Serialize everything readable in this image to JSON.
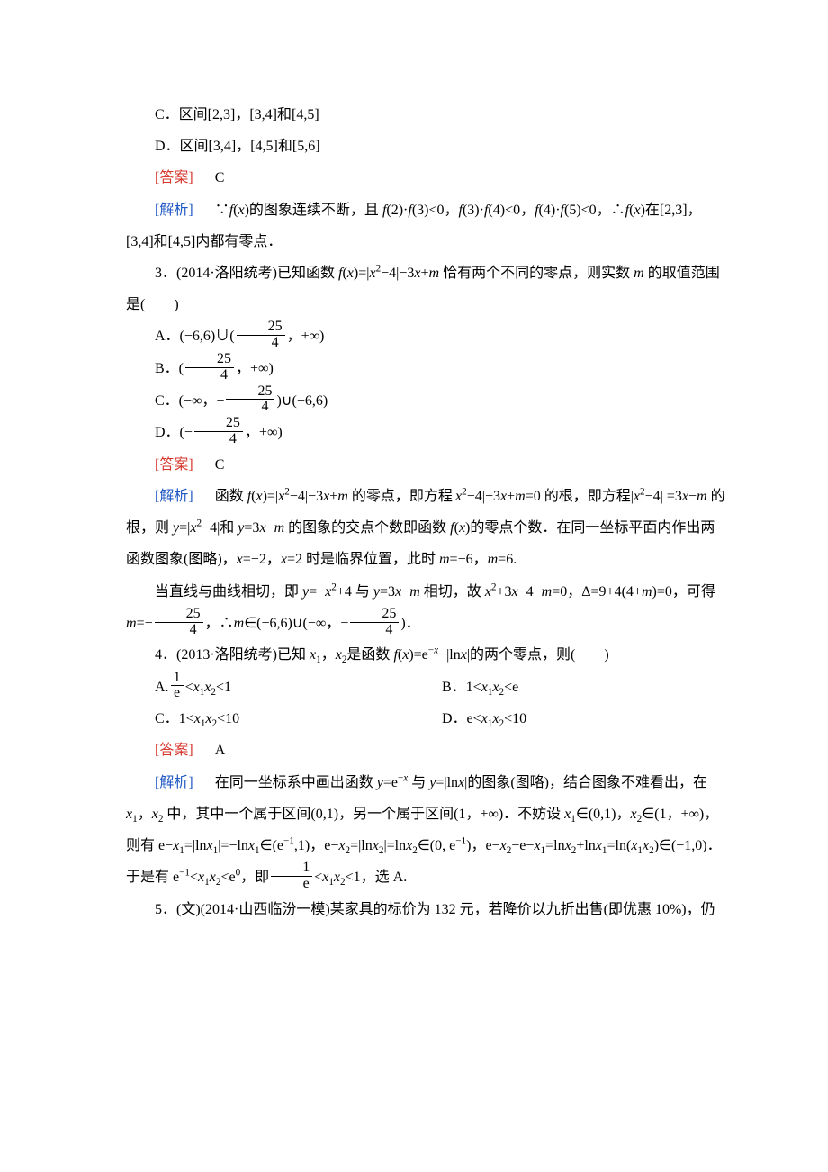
{
  "colors": {
    "answer_label": "#d6362b",
    "analysis_label": "#1f57c4",
    "body_text": "#000000",
    "background": "#ffffff"
  },
  "typography": {
    "body_fontsize_pt": 12,
    "line_height": 2.2,
    "body_font": "SimSun / Times New Roman",
    "indent_em": 2
  },
  "labels": {
    "answer": "[答案]",
    "analysis": "[解析]"
  },
  "q2": {
    "optC": "C．区间[2,3]，[3,4]和[4,5]",
    "optD": "D．区间[3,4]，[4,5]和[5,6]",
    "answer": "C",
    "analysis": "∵f(x)的图象连续不断，且 f(2)·f(3)<0，f(3)·f(4)<0，f(4)·f(5)<0，∴f(x)在[2,3]，[3,4]和[4,5]内都有零点．"
  },
  "q3": {
    "stem": "3．(2014·洛阳统考)已知函数 f(x)=|x²−4|−3x+m 恰有两个不同的零点，则实数 m 的取值范围是(　　)",
    "optA_pre": "A．(−6,6)∪(",
    "optA_post": "，+∞)",
    "optB_pre": "B．(",
    "optB_post": "，+∞)",
    "optC_pre": "C．(−∞，−",
    "optC_post": ")∪(−6,6)",
    "optD_pre": "D．(−",
    "optD_post": "，+∞)",
    "frac_num": "25",
    "frac_den": "4",
    "answer": "C",
    "analysis_p1": "函数 f(x)=|x²−4|−3x+m 的零点，即方程|x²−4|−3x+m=0 的根，即方程|x²−4| =3x−m 的根，则 y=|x²−4|和 y=3x−m 的图象的交点个数即函数 f(x)的零点个数．在同一坐标平面内作出两函数图象(图略)，x=−2，x=2 时是临界位置，此时 m=−6，m=6.",
    "analysis_p2a": "当直线与曲线相切，即 y=−x²+4 与 y=3x−m 相切，故 x²+3x−4−m=0，Δ=9+4(4+m)=0，可得 m=−",
    "analysis_p2b": "，∴m∈(−6,6)∪(−∞，−",
    "analysis_p2c": ")．"
  },
  "q4": {
    "stem": "4．(2013·洛阳统考)已知 x₁，x₂是函数 f(x)=e⁻ˣ−|lnx|的两个零点，则(　　)",
    "optA_pre": "A.",
    "optA_post": "<x₁x₂<1",
    "optB": "B．1<x₁x₂<e",
    "optC": "C．1<x₁x₂<10",
    "optD": "D．e<x₁x₂<10",
    "frac_num": "1",
    "frac_den": "e",
    "answer": "A",
    "analysis_a": "在同一坐标系中画出函数 y=e⁻ˣ 与 y=|lnx|的图象(图略)，结合图象不难看出，在 x₁，x₂ 中，其中一个属于区间(0,1)，另一个属于区间(1，+∞)．不妨设 x₁∈(0,1)，x₂∈(1，+∞)，则有 e−x₁=|lnx₁|=−lnx₁∈(e⁻¹,1)，e−x₂=|lnx₂|=lnx₂∈(0, e⁻¹)，e−x₂−e−x₁=lnx₂+lnx₁=ln(x₁x₂)∈(−1,0)．于是有 e⁻¹<x₁x₂<e⁰，即",
    "analysis_b": "<x₁x₂<1，选 A."
  },
  "q5": {
    "stem": "5．(文)(2014·山西临汾一模)某家具的标价为 132 元，若降价以九折出售(即优惠 10%)，仍"
  }
}
